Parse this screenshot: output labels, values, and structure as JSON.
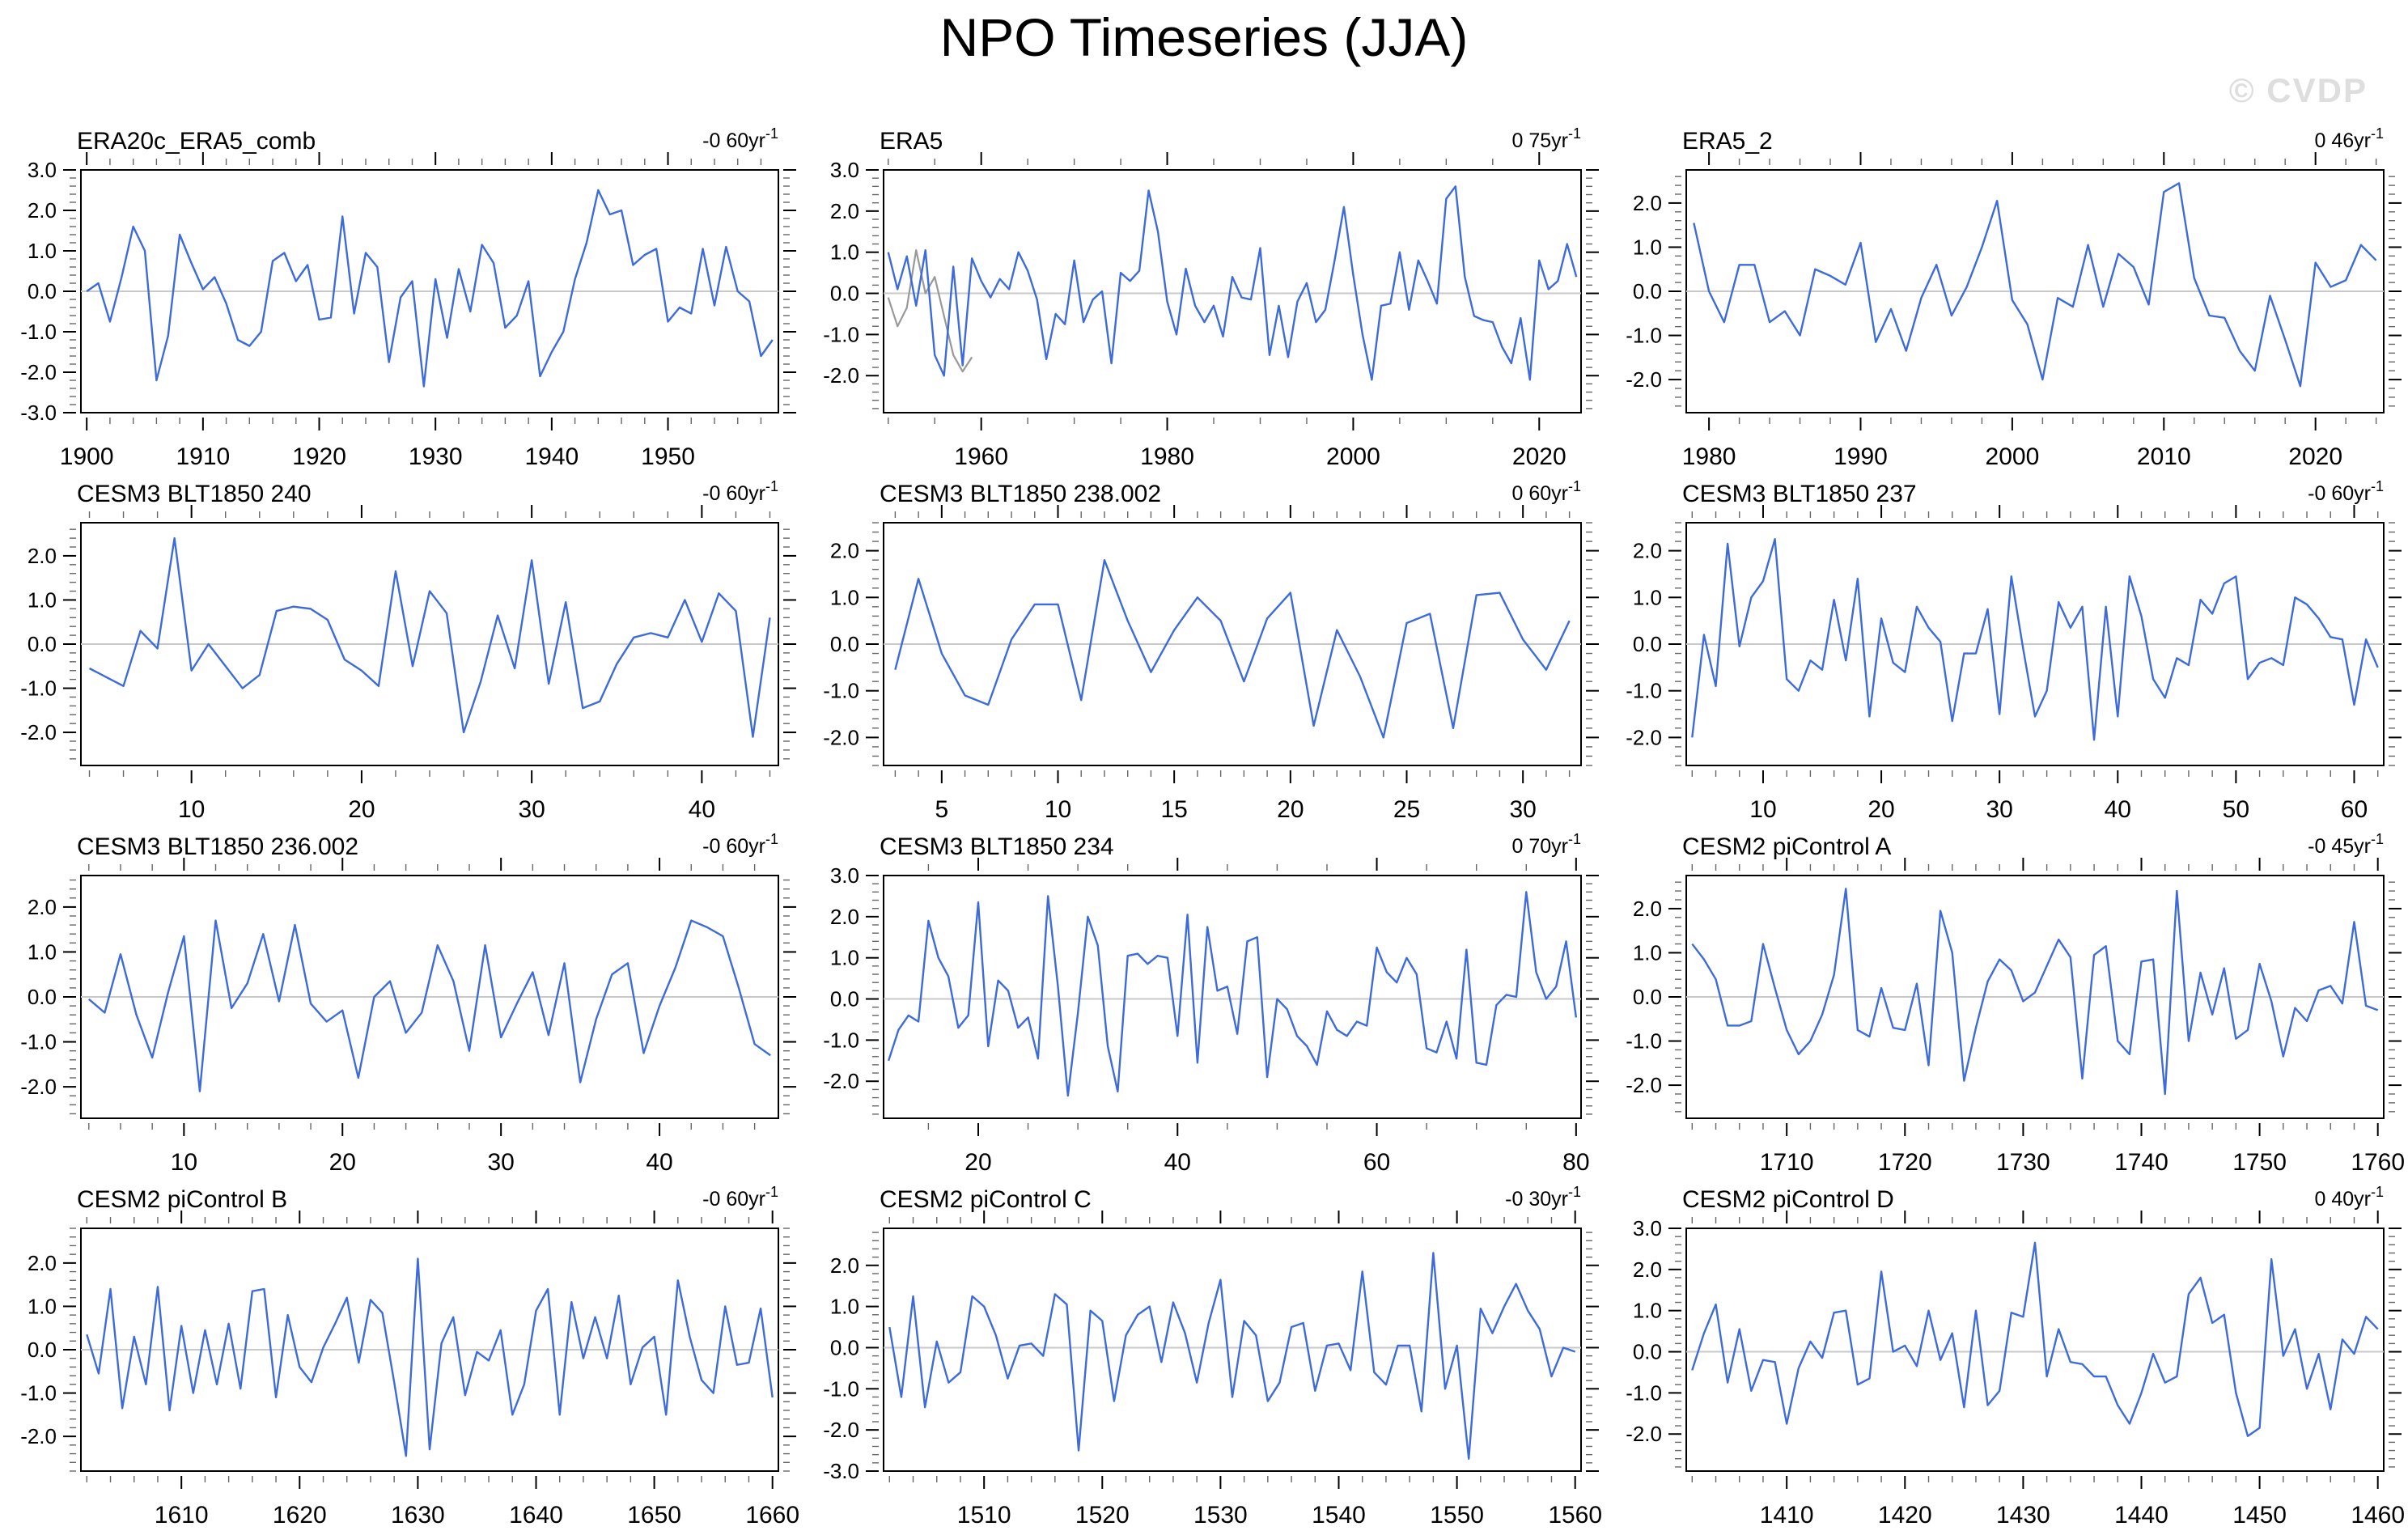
{
  "page": {
    "title": "NPO Timeseries (JJA)",
    "watermark": "© CVDP"
  },
  "colors": {
    "line": "#3d6bdb",
    "line_secondary": "#999999",
    "zero_line": "#c9c9c9",
    "axis": "#000000",
    "minor_tick": "#666666",
    "watermark": "#dedede"
  },
  "chart_data": [
    {
      "type": "line",
      "title": "ERA20c_ERA5_comb",
      "trend_text": "-0 60yr",
      "trend_exp": "-1",
      "x_start": 1900,
      "xlim": [
        1899.5,
        1959.5
      ],
      "x_ticks": [
        1900,
        1910,
        1920,
        1930,
        1940,
        1950
      ],
      "x_minor_step": 2,
      "ylim": [
        -3.0,
        3.0
      ],
      "y_ticks": [
        3.0,
        2.0,
        1.0,
        0.0,
        -1.0,
        -2.0,
        -3.0
      ],
      "y_minor_step": 0.2,
      "values": [
        0.0,
        0.2,
        -0.75,
        0.35,
        1.6,
        1.0,
        -2.2,
        -1.1,
        1.4,
        0.7,
        0.05,
        0.35,
        -0.3,
        -1.2,
        -1.35,
        -1.0,
        0.75,
        0.95,
        0.25,
        0.65,
        -0.7,
        -0.65,
        1.85,
        -0.55,
        0.95,
        0.6,
        -1.75,
        -0.15,
        0.25,
        -2.35,
        0.3,
        -1.15,
        0.55,
        -0.5,
        1.15,
        0.7,
        -0.9,
        -0.6,
        0.25,
        -2.1,
        -1.5,
        -1.0,
        0.3,
        1.2,
        2.5,
        1.9,
        2.0,
        0.65,
        0.9,
        1.05,
        -0.75,
        -0.4,
        -0.55,
        1.05,
        -0.35,
        1.1,
        0.0,
        -0.25,
        -1.6,
        -1.2
      ]
    },
    {
      "type": "line",
      "title": "ERA5",
      "trend_text": "0 75yr",
      "trend_exp": "-1",
      "x_start": 1950,
      "xlim": [
        1949.5,
        2024.5
      ],
      "x_ticks": [
        1960,
        1980,
        2000,
        2020
      ],
      "x_minor_step": 5,
      "ylim": [
        -2.9,
        3.0
      ],
      "y_ticks": [
        3.0,
        2.0,
        1.0,
        0.0,
        -1.0,
        -2.0
      ],
      "y_minor_step": 0.2,
      "values": [
        1.0,
        0.1,
        0.9,
        -0.3,
        1.05,
        -1.5,
        -2.0,
        0.65,
        -1.75,
        0.85,
        0.3,
        -0.1,
        0.35,
        0.1,
        1.0,
        0.55,
        -0.15,
        -1.6,
        -0.5,
        -0.75,
        0.8,
        -0.7,
        -0.15,
        0.05,
        -1.7,
        0.5,
        0.3,
        0.55,
        2.5,
        1.5,
        -0.2,
        -1.0,
        0.6,
        -0.3,
        -0.7,
        -0.3,
        -1.05,
        0.4,
        -0.1,
        -0.15,
        1.1,
        -1.5,
        -0.3,
        -1.55,
        -0.2,
        0.25,
        -0.7,
        -0.4,
        0.8,
        2.1,
        0.45,
        -1.0,
        -2.1,
        -0.3,
        -0.25,
        1.0,
        -0.4,
        0.8,
        0.3,
        -0.25,
        2.3,
        2.6,
        0.4,
        -0.55,
        -0.65,
        -0.7,
        -1.3,
        -1.7,
        -0.6,
        -2.1,
        0.8,
        0.1,
        0.3,
        1.2,
        0.4
      ],
      "series2_x_start": 1950,
      "series2_values": [
        -0.1,
        -0.8,
        -0.35,
        1.05,
        0.0,
        0.4,
        -0.55,
        -1.5,
        -1.9,
        -1.55
      ]
    },
    {
      "type": "line",
      "title": "ERA5_2",
      "trend_text": "0 46yr",
      "trend_exp": "-1",
      "x_start": 1979,
      "xlim": [
        1978.5,
        2024.5
      ],
      "x_ticks": [
        1980,
        1990,
        2000,
        2010,
        2020
      ],
      "x_minor_step": 2,
      "ylim": [
        -2.75,
        2.75
      ],
      "y_ticks": [
        2.0,
        1.0,
        0.0,
        -1.0,
        -2.0
      ],
      "y_minor_step": 0.2,
      "values": [
        1.55,
        0.0,
        -0.7,
        0.6,
        0.6,
        -0.7,
        -0.45,
        -1.0,
        0.5,
        0.35,
        0.15,
        1.1,
        -1.15,
        -0.4,
        -1.35,
        -0.15,
        0.6,
        -0.55,
        0.1,
        1.0,
        2.05,
        -0.2,
        -0.75,
        -2.0,
        -0.15,
        -0.35,
        1.05,
        -0.35,
        0.85,
        0.55,
        -0.3,
        2.25,
        2.45,
        0.3,
        -0.55,
        -0.6,
        -1.35,
        -1.8,
        -0.1,
        -1.1,
        -2.15,
        0.65,
        0.1,
        0.25,
        1.05,
        0.7
      ]
    },
    {
      "type": "line",
      "title": "CESM3 BLT1850 240",
      "trend_text": "-0 60yr",
      "trend_exp": "-1",
      "x_start": 4,
      "xlim": [
        3.5,
        44.5
      ],
      "x_ticks": [
        10,
        20,
        30,
        40
      ],
      "x_minor_step": 2,
      "ylim": [
        -2.75,
        2.75
      ],
      "y_ticks": [
        2.0,
        1.0,
        0.0,
        -1.0,
        -2.0
      ],
      "y_minor_step": 0.2,
      "values": [
        -0.55,
        -0.75,
        -0.95,
        0.3,
        -0.1,
        2.4,
        -0.6,
        0.0,
        -0.5,
        -1.0,
        -0.7,
        0.75,
        0.85,
        0.8,
        0.55,
        -0.35,
        -0.6,
        -0.95,
        1.65,
        -0.5,
        1.2,
        0.7,
        -2.0,
        -0.85,
        0.65,
        -0.55,
        1.9,
        -0.9,
        0.95,
        -1.45,
        -1.3,
        -0.45,
        0.15,
        0.25,
        0.15,
        1.0,
        0.05,
        1.15,
        0.75,
        -2.1,
        0.6
      ]
    },
    {
      "type": "line",
      "title": "CESM3 BLT1850 238.002",
      "trend_text": "0 60yr",
      "trend_exp": "-1",
      "x_start": 3,
      "xlim": [
        2.5,
        32.5
      ],
      "x_ticks": [
        5,
        10,
        15,
        20,
        25,
        30
      ],
      "x_minor_step": 1,
      "ylim": [
        -2.6,
        2.6
      ],
      "y_ticks": [
        2.0,
        1.0,
        0.0,
        -1.0,
        -2.0
      ],
      "y_minor_step": 0.2,
      "values": [
        -0.55,
        1.4,
        -0.2,
        -1.1,
        -1.3,
        0.1,
        0.85,
        0.85,
        -1.2,
        1.8,
        0.5,
        -0.6,
        0.3,
        1.0,
        0.5,
        -0.8,
        0.55,
        1.1,
        -1.75,
        0.3,
        -0.7,
        -2.0,
        0.45,
        0.65,
        -1.8,
        1.05,
        1.1,
        0.1,
        -0.55,
        0.5
      ]
    },
    {
      "type": "line",
      "title": "CESM3 BLT1850 237",
      "trend_text": "-0 60yr",
      "trend_exp": "-1",
      "x_start": 4,
      "xlim": [
        3.5,
        62.5
      ],
      "x_ticks": [
        10,
        20,
        30,
        40,
        50,
        60
      ],
      "x_minor_step": 2,
      "ylim": [
        -2.6,
        2.6
      ],
      "y_ticks": [
        2.0,
        1.0,
        0.0,
        -1.0,
        -2.0
      ],
      "y_minor_step": 0.2,
      "values": [
        -2.0,
        0.2,
        -0.9,
        2.15,
        -0.05,
        1.0,
        1.35,
        2.25,
        -0.75,
        -1.0,
        -0.35,
        -0.55,
        0.95,
        -0.35,
        1.4,
        -1.55,
        0.55,
        -0.4,
        -0.6,
        0.8,
        0.35,
        0.05,
        -1.65,
        -0.2,
        -0.2,
        0.75,
        -1.5,
        1.45,
        -0.1,
        -1.55,
        -1.0,
        0.9,
        0.35,
        0.8,
        -2.05,
        0.8,
        -1.55,
        1.45,
        0.6,
        -0.75,
        -1.15,
        -0.3,
        -0.45,
        0.95,
        0.65,
        1.3,
        1.45,
        -0.75,
        -0.4,
        -0.3,
        -0.45,
        1.0,
        0.85,
        0.55,
        0.15,
        0.1,
        -1.3,
        0.1,
        -0.5
      ]
    },
    {
      "type": "line",
      "title": "CESM3 BLT1850 236.002",
      "trend_text": "-0 60yr",
      "trend_exp": "-1",
      "x_start": 4,
      "xlim": [
        3.5,
        47.5
      ],
      "x_ticks": [
        10,
        20,
        30,
        40
      ],
      "x_minor_step": 2,
      "ylim": [
        -2.7,
        2.7
      ],
      "y_ticks": [
        2.0,
        1.0,
        0.0,
        -1.0,
        -2.0
      ],
      "y_minor_step": 0.2,
      "values": [
        -0.05,
        -0.35,
        0.95,
        -0.4,
        -1.35,
        0.1,
        1.35,
        -2.1,
        1.7,
        -0.25,
        0.3,
        1.4,
        -0.1,
        1.6,
        -0.15,
        -0.55,
        -0.3,
        -1.8,
        0.0,
        0.35,
        -0.8,
        -0.35,
        1.15,
        0.35,
        -1.2,
        1.15,
        -0.9,
        -0.15,
        0.55,
        -0.85,
        0.75,
        -1.9,
        -0.5,
        0.5,
        0.75,
        -1.25,
        -0.2,
        0.65,
        1.7,
        1.55,
        1.35,
        0.2,
        -1.05,
        -1.3
      ]
    },
    {
      "type": "line",
      "title": "CESM3 BLT1850 234",
      "trend_text": "0 70yr",
      "trend_exp": "-1",
      "x_start": 11,
      "xlim": [
        10.5,
        80.5
      ],
      "x_ticks": [
        20,
        40,
        60,
        80
      ],
      "x_minor_step": 5,
      "ylim": [
        -2.9,
        3.0
      ],
      "y_ticks": [
        3.0,
        2.0,
        1.0,
        0.0,
        -1.0,
        -2.0
      ],
      "y_minor_step": 0.2,
      "values": [
        -1.5,
        -0.75,
        -0.4,
        -0.55,
        1.9,
        1.0,
        0.55,
        -0.7,
        -0.4,
        2.35,
        -1.15,
        0.45,
        0.2,
        -0.7,
        -0.45,
        -1.45,
        2.5,
        0.3,
        -2.35,
        -0.35,
        2.0,
        1.3,
        -1.15,
        -2.25,
        1.05,
        1.1,
        0.85,
        1.05,
        1.0,
        -0.9,
        2.05,
        -1.55,
        1.75,
        0.2,
        0.3,
        -0.85,
        1.4,
        1.5,
        -1.9,
        0.0,
        -0.25,
        -0.9,
        -1.15,
        -1.6,
        -0.3,
        -0.75,
        -0.9,
        -0.55,
        -0.65,
        1.25,
        0.65,
        0.4,
        1.0,
        0.6,
        -1.2,
        -1.3,
        -0.55,
        -1.45,
        1.2,
        -1.55,
        -1.6,
        -0.15,
        0.1,
        0.05,
        2.6,
        0.65,
        0.0,
        0.3,
        1.4,
        -0.45
      ]
    },
    {
      "type": "line",
      "title": "CESM2 piControl A",
      "trend_text": "-0 45yr",
      "trend_exp": "-1",
      "x_start": 1702,
      "xlim": [
        1701.5,
        1760.5
      ],
      "x_ticks": [
        1710,
        1720,
        1730,
        1740,
        1750,
        1760
      ],
      "x_minor_step": 2,
      "ylim": [
        -2.75,
        2.75
      ],
      "y_ticks": [
        2.0,
        1.0,
        0.0,
        -1.0,
        -2.0
      ],
      "y_minor_step": 0.2,
      "values": [
        1.2,
        0.85,
        0.4,
        -0.65,
        -0.65,
        -0.55,
        1.2,
        0.2,
        -0.75,
        -1.3,
        -1.0,
        -0.4,
        0.5,
        2.45,
        -0.75,
        -0.9,
        0.2,
        -0.7,
        -0.75,
        0.3,
        -1.55,
        1.95,
        1.0,
        -1.9,
        -0.7,
        0.35,
        0.85,
        0.6,
        -0.1,
        0.1,
        0.7,
        1.3,
        0.9,
        -1.85,
        0.95,
        1.15,
        -1.0,
        -1.3,
        0.8,
        0.85,
        -2.2,
        2.4,
        -1.0,
        0.55,
        -0.4,
        0.65,
        -0.95,
        -0.75,
        0.75,
        -0.1,
        -1.35,
        -0.25,
        -0.55,
        0.15,
        0.25,
        -0.15,
        1.7,
        -0.2,
        -0.3
      ]
    },
    {
      "type": "line",
      "title": "CESM2 piControl B",
      "trend_text": "-0 60yr",
      "trend_exp": "-1",
      "x_start": 1602,
      "xlim": [
        1601.5,
        1660.5
      ],
      "x_ticks": [
        1610,
        1620,
        1630,
        1640,
        1650,
        1660
      ],
      "x_minor_step": 2,
      "ylim": [
        -2.8,
        2.8
      ],
      "y_ticks": [
        2.0,
        1.0,
        0.0,
        -1.0,
        -2.0
      ],
      "y_minor_step": 0.2,
      "values": [
        0.35,
        -0.55,
        1.4,
        -1.35,
        0.3,
        -0.8,
        1.45,
        -1.4,
        0.55,
        -1.0,
        0.45,
        -0.8,
        0.6,
        -0.9,
        1.35,
        1.4,
        -1.1,
        0.8,
        -0.4,
        -0.75,
        0.05,
        0.6,
        1.2,
        -0.3,
        1.15,
        0.85,
        -0.75,
        -2.45,
        2.1,
        -2.3,
        0.15,
        0.75,
        -1.05,
        -0.05,
        -0.25,
        0.45,
        -1.5,
        -0.8,
        0.9,
        1.4,
        -1.5,
        1.1,
        -0.2,
        0.75,
        -0.2,
        1.25,
        -0.8,
        0.05,
        0.3,
        -1.5,
        1.6,
        0.3,
        -0.7,
        -1.0,
        1.0,
        -0.35,
        -0.3,
        0.95,
        -1.1
      ]
    },
    {
      "type": "line",
      "title": "CESM2 piControl C",
      "trend_text": "-0 30yr",
      "trend_exp": "-1",
      "x_start": 1502,
      "xlim": [
        1501.5,
        1560.5
      ],
      "x_ticks": [
        1510,
        1520,
        1530,
        1540,
        1550,
        1560
      ],
      "x_minor_step": 2,
      "ylim": [
        -3.0,
        2.9
      ],
      "y_ticks": [
        2.0,
        1.0,
        0.0,
        -1.0,
        -2.0,
        -3.0
      ],
      "y_minor_step": 0.2,
      "values": [
        0.5,
        -1.2,
        1.25,
        -1.45,
        0.15,
        -0.85,
        -0.6,
        1.25,
        1.0,
        0.3,
        -0.75,
        0.05,
        0.1,
        -0.2,
        1.3,
        1.05,
        -2.5,
        0.9,
        0.65,
        -1.3,
        0.3,
        0.8,
        1.0,
        -0.35,
        1.1,
        0.35,
        -0.85,
        0.6,
        1.65,
        -1.2,
        0.65,
        0.3,
        -1.3,
        -0.85,
        0.5,
        0.6,
        -1.05,
        0.05,
        0.1,
        -0.55,
        1.85,
        -0.6,
        -0.9,
        0.05,
        0.05,
        -1.55,
        2.3,
        -1.0,
        0.05,
        -2.7,
        0.95,
        0.35,
        1.0,
        1.55,
        0.9,
        0.45,
        -0.7,
        0.0,
        -0.1
      ]
    },
    {
      "type": "line",
      "title": "CESM2 piControl D",
      "trend_text": "0 40yr",
      "trend_exp": "-1",
      "x_start": 1402,
      "xlim": [
        1401.5,
        1460.5
      ],
      "x_ticks": [
        1410,
        1420,
        1430,
        1440,
        1450,
        1460
      ],
      "x_minor_step": 2,
      "ylim": [
        -2.9,
        3.0
      ],
      "y_ticks": [
        3.0,
        2.0,
        1.0,
        0.0,
        -1.0,
        -2.0
      ],
      "y_minor_step": 0.2,
      "values": [
        -0.45,
        0.45,
        1.15,
        -0.75,
        0.55,
        -0.95,
        -0.2,
        -0.25,
        -1.75,
        -0.4,
        0.25,
        -0.15,
        0.95,
        1.0,
        -0.8,
        -0.65,
        1.95,
        0.0,
        0.15,
        -0.35,
        1.0,
        -0.2,
        0.45,
        -1.35,
        1.0,
        -1.3,
        -0.95,
        0.95,
        0.85,
        2.65,
        -0.6,
        0.55,
        -0.25,
        -0.3,
        -0.6,
        -0.6,
        -1.3,
        -1.75,
        -1.0,
        -0.05,
        -0.75,
        -0.6,
        1.4,
        1.8,
        0.7,
        0.9,
        -1.0,
        -2.05,
        -1.85,
        2.25,
        -0.1,
        0.55,
        -0.9,
        -0.05,
        -1.4,
        0.3,
        -0.05,
        0.85,
        0.55
      ]
    }
  ]
}
